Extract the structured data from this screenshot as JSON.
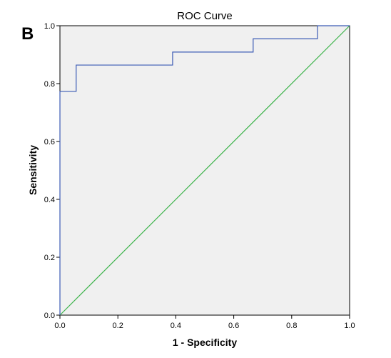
{
  "panel_label": "B",
  "chart_data": {
    "type": "line",
    "title": "ROC Curve",
    "xlabel": "1 - Specificity",
    "ylabel": "Sensitivity",
    "xlim": [
      0,
      1
    ],
    "ylim": [
      0,
      1
    ],
    "x_ticks": [
      "0.0",
      "0.2",
      "0.4",
      "0.6",
      "0.8",
      "1.0"
    ],
    "y_ticks": [
      "0.0",
      "0.2",
      "0.4",
      "0.6",
      "0.8",
      "1.0"
    ],
    "grid": false,
    "background_color": "#f0f0f0",
    "series": [
      {
        "color": "#3b5bb5",
        "points": [
          [
            0,
            0
          ],
          [
            0,
            0.773
          ],
          [
            0.056,
            0.773
          ],
          [
            0.056,
            0.864
          ],
          [
            0.389,
            0.864
          ],
          [
            0.389,
            0.909
          ],
          [
            0.667,
            0.909
          ],
          [
            0.667,
            0.955
          ],
          [
            0.889,
            0.955
          ],
          [
            0.889,
            1.0
          ],
          [
            1.0,
            1.0
          ]
        ]
      },
      {
        "color": "#3cb34a",
        "points": [
          [
            0,
            0
          ],
          [
            1,
            1
          ]
        ]
      }
    ]
  }
}
